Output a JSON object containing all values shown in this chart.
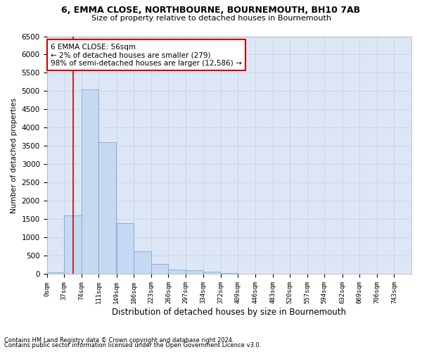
{
  "title1": "6, EMMA CLOSE, NORTHBOURNE, BOURNEMOUTH, BH10 7AB",
  "title2": "Size of property relative to detached houses in Bournemouth",
  "xlabel": "Distribution of detached houses by size in Bournemouth",
  "ylabel": "Number of detached properties",
  "footnote1": "Contains HM Land Registry data © Crown copyright and database right 2024.",
  "footnote2": "Contains public sector information licensed under the Open Government Licence v3.0.",
  "annotation_title": "6 EMMA CLOSE: 56sqm",
  "annotation_line1": "← 2% of detached houses are smaller (279)",
  "annotation_line2": "98% of semi-detached houses are larger (12,586) →",
  "property_size": 56,
  "bar_color": "#c5d9f0",
  "bar_edge_color": "#7aaadc",
  "vline_color": "#cc0000",
  "annotation_box_color": "#ffffff",
  "annotation_box_edge": "#cc0000",
  "background_color": "#ffffff",
  "grid_color": "#c8d4e8",
  "ax_bg_color": "#dce6f4",
  "categories": [
    "0sqm",
    "37sqm",
    "74sqm",
    "111sqm",
    "149sqm",
    "186sqm",
    "223sqm",
    "260sqm",
    "297sqm",
    "334sqm",
    "372sqm",
    "409sqm",
    "446sqm",
    "483sqm",
    "520sqm",
    "557sqm",
    "594sqm",
    "632sqm",
    "669sqm",
    "706sqm",
    "743sqm"
  ],
  "bin_edges": [
    0,
    37,
    74,
    111,
    149,
    186,
    223,
    260,
    297,
    334,
    372,
    409,
    446,
    483,
    520,
    557,
    594,
    632,
    669,
    706,
    743,
    780
  ],
  "values": [
    50,
    1600,
    5050,
    3600,
    1400,
    625,
    275,
    125,
    100,
    60,
    30,
    15,
    8,
    5,
    3,
    2,
    1,
    1,
    0,
    0,
    0
  ],
  "ylim": [
    0,
    6500
  ],
  "yticks": [
    0,
    500,
    1000,
    1500,
    2000,
    2500,
    3000,
    3500,
    4000,
    4500,
    5000,
    5500,
    6000,
    6500
  ]
}
